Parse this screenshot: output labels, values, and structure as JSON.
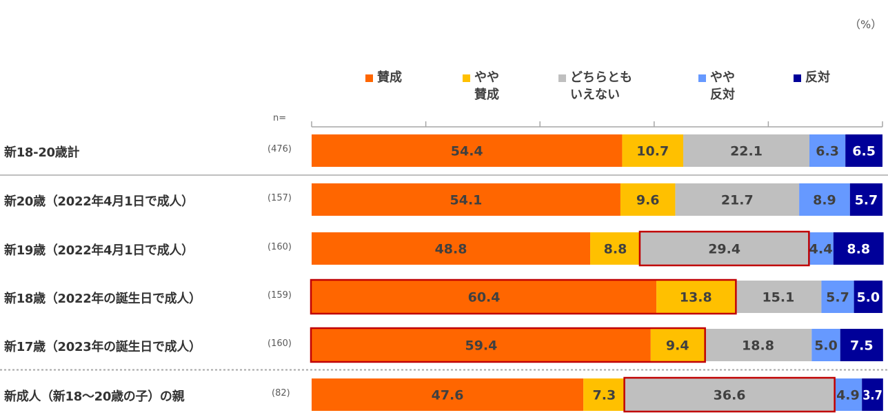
{
  "chart_data": {
    "type": "bar",
    "orientation": "horizontal",
    "stacked": true,
    "unit_label": "（%）",
    "n_label": "n=",
    "categories": [
      "新18-20歳計",
      "新20歳（2022年4月1日で成人）",
      "新19歳（2022年4月1日で成人）",
      "新18歳（2022年の誕生日で成人）",
      "新17歳（2023年の誕生日で成人）",
      "新成人（新18～20歳の子）の親"
    ],
    "n_values": [
      "(476)",
      "(157)",
      "(160)",
      "(159)",
      "(160)",
      "(82)"
    ],
    "series": [
      {
        "name": "賛成",
        "color": "#FF6600",
        "text_color": "#404040",
        "values": [
          54.4,
          54.1,
          48.8,
          60.4,
          59.4,
          47.6
        ]
      },
      {
        "name": "やや\n賛成",
        "color": "#FFC000",
        "text_color": "#404040",
        "values": [
          10.7,
          9.6,
          8.8,
          13.8,
          9.4,
          7.3
        ]
      },
      {
        "name": "どちらとも\nいえない",
        "color": "#BFBFBF",
        "text_color": "#404040",
        "values": [
          22.1,
          21.7,
          29.4,
          15.1,
          18.8,
          36.6
        ]
      },
      {
        "name": "やや\n反対",
        "color": "#6699FF",
        "text_color": "#404040",
        "values": [
          6.3,
          8.9,
          4.4,
          5.7,
          5.0,
          4.9
        ]
      },
      {
        "name": "反対",
        "color": "#000099",
        "text_color": "#FFFFFF",
        "values": [
          6.5,
          5.7,
          8.8,
          5.0,
          7.5,
          3.7
        ]
      }
    ],
    "xlim": [
      0,
      100
    ],
    "highlights": [
      {
        "row": 2,
        "series_from": 2,
        "series_to": 2
      },
      {
        "row": 3,
        "series_from": 0,
        "series_to": 1
      },
      {
        "row": 4,
        "series_from": 0,
        "series_to": 1
      },
      {
        "row": 5,
        "series_from": 2,
        "series_to": 2
      }
    ],
    "highlight_color": "#C00000",
    "separators": [
      {
        "after_row": 0,
        "style": "solid"
      },
      {
        "after_row": 4,
        "style": "dotted"
      }
    ]
  }
}
